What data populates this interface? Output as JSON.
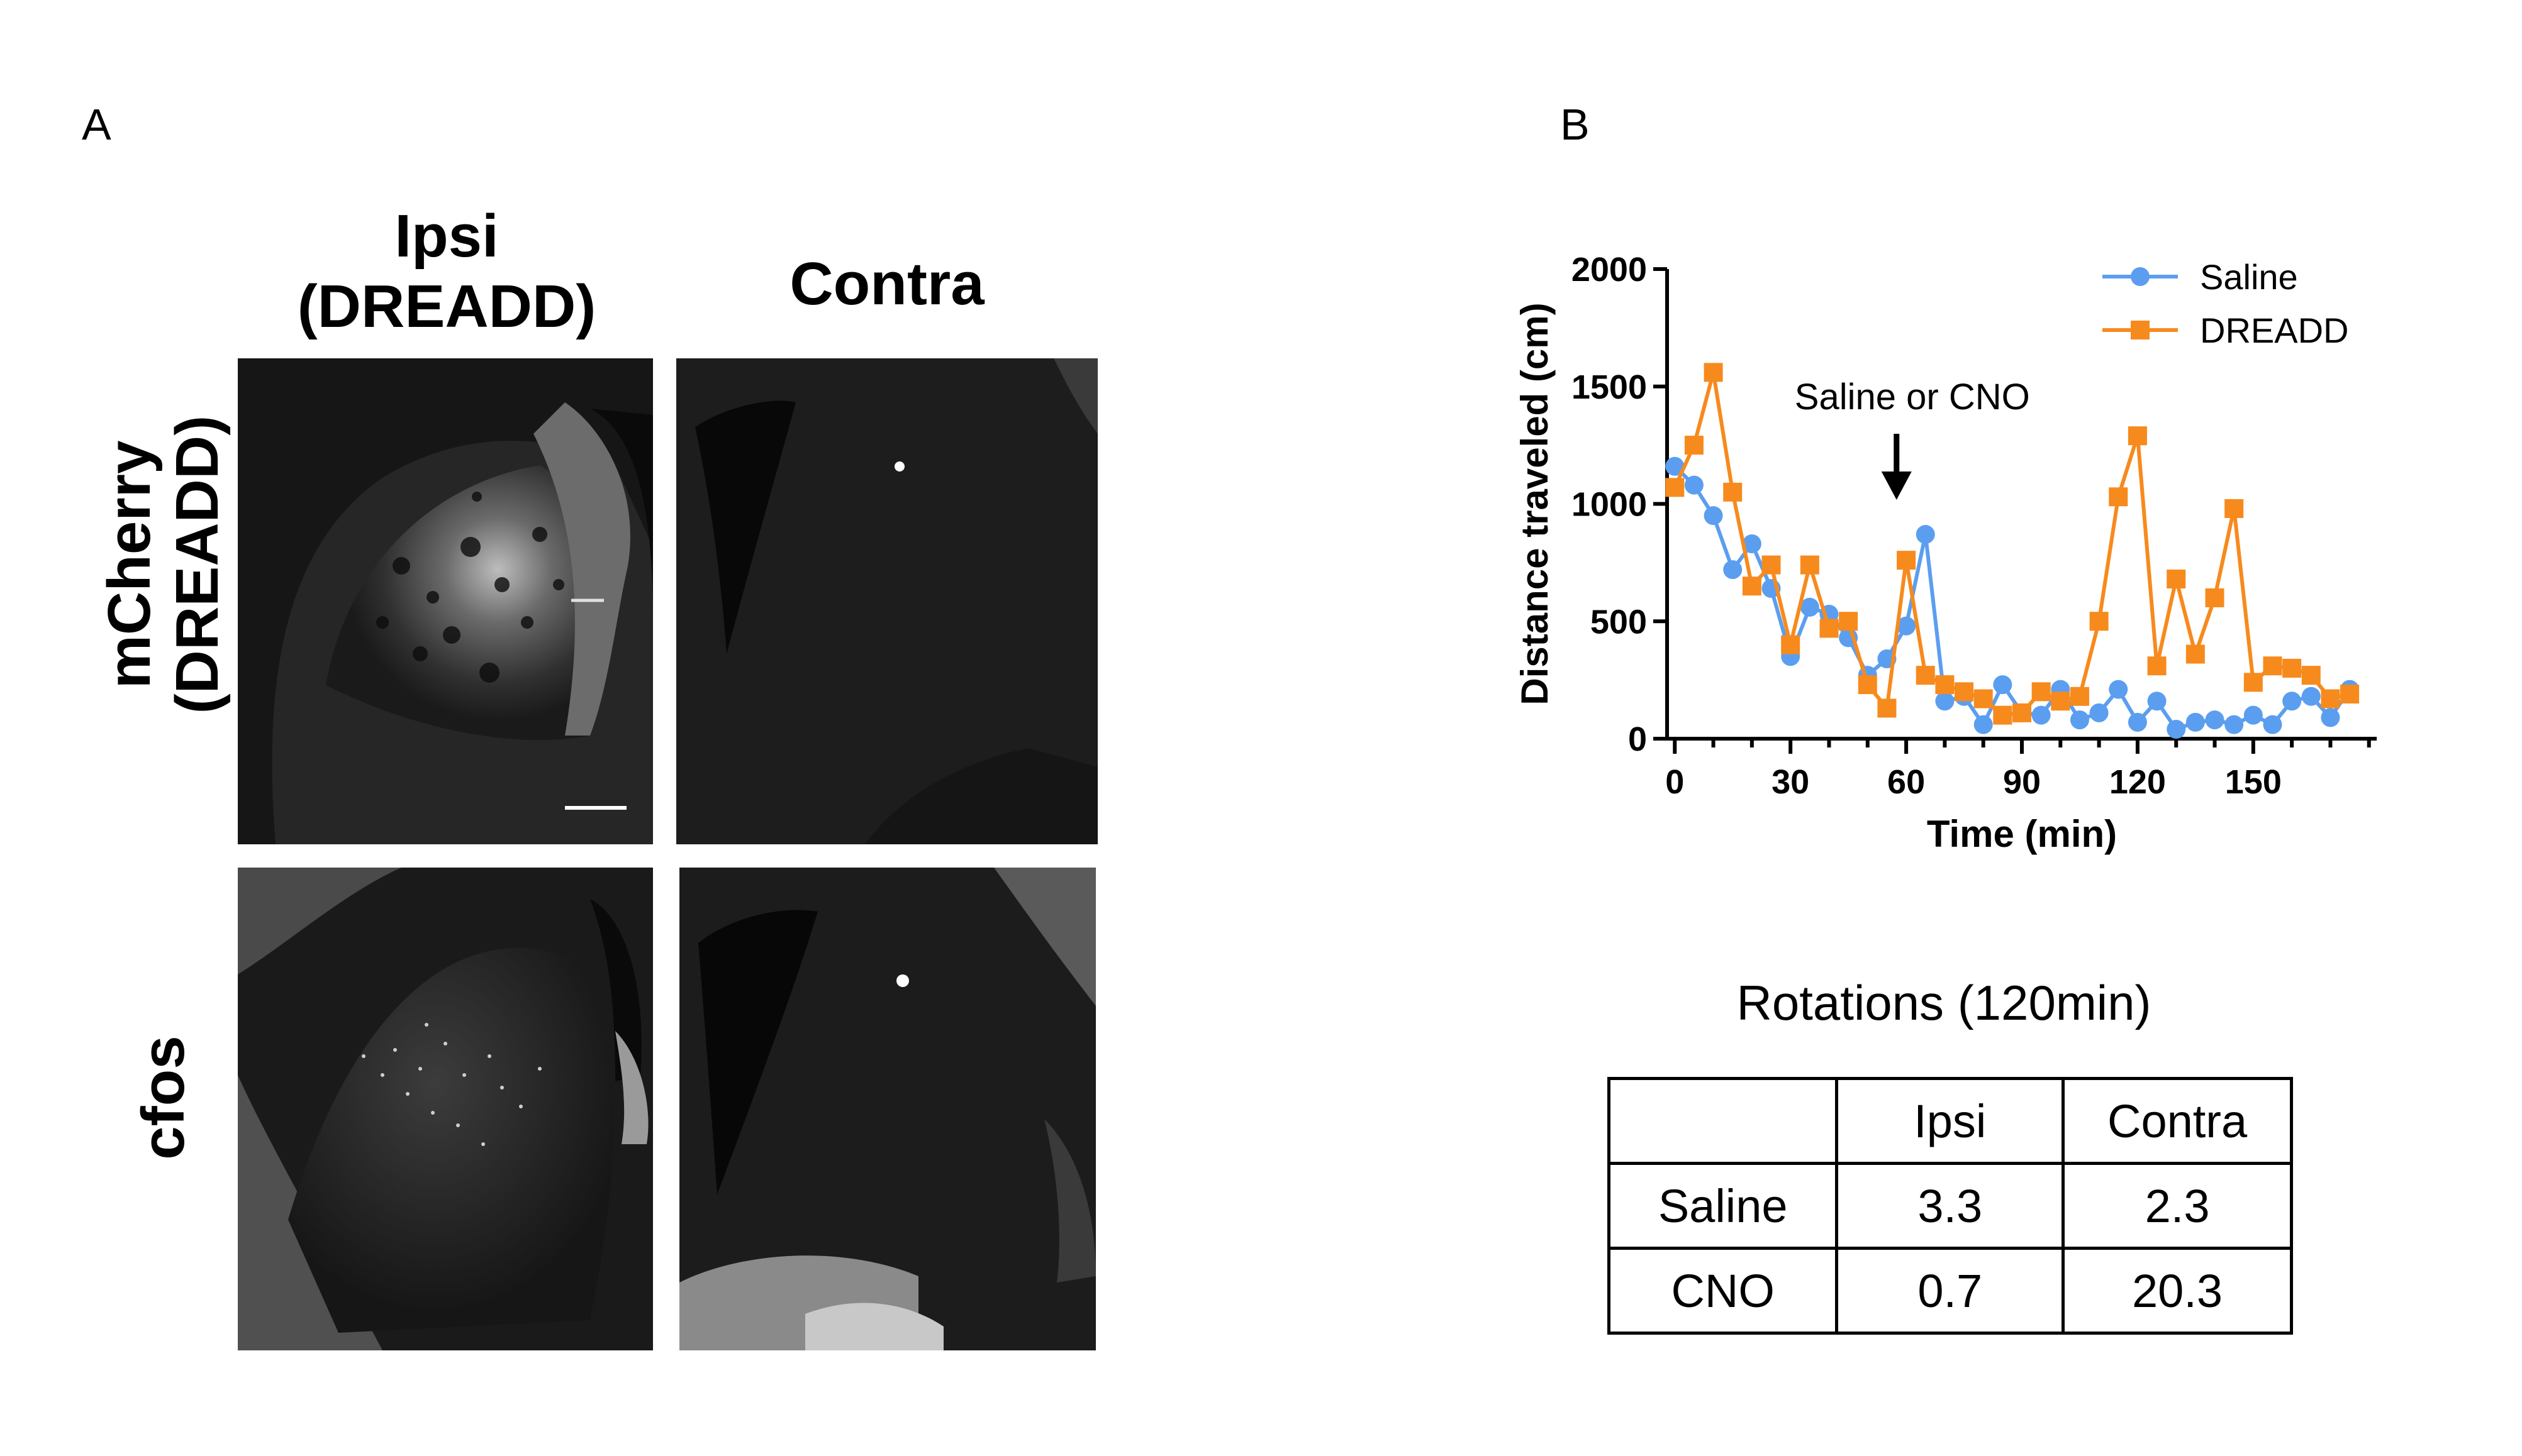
{
  "panel_a": {
    "label": "A",
    "column_headers": {
      "ipsi_line1": "Ipsi",
      "ipsi_line2": "(DREADD)",
      "contra": "Contra"
    },
    "row_headers": {
      "mcherry_line1": "mCherry",
      "mcherry_line2": "(DREADD)",
      "cfos": "cfos"
    },
    "micrographs": [
      {
        "name": "mcherry-ipsi-image",
        "row": "mCherry (DREADD)",
        "column": "Ipsi (DREADD)"
      },
      {
        "name": "mcherry-contra-image",
        "row": "mCherry (DREADD)",
        "column": "Contra"
      },
      {
        "name": "cfos-ipsi-image",
        "row": "cfos",
        "column": "Ipsi (DREADD)"
      },
      {
        "name": "cfos-contra-image",
        "row": "cfos",
        "column": "Contra"
      }
    ]
  },
  "panel_b": {
    "label": "B",
    "table": {
      "title": "Rotations (120min)",
      "headers": [
        "",
        "Ipsi",
        "Contra"
      ],
      "rows": [
        [
          "Saline",
          "3.3",
          "2.3"
        ],
        [
          "CNO",
          "0.7",
          "20.3"
        ]
      ]
    }
  },
  "colors": {
    "saline": "#5b9ef0",
    "dreadd": "#f78a1d"
  },
  "chart_data": {
    "type": "line",
    "title": "",
    "xlabel": "Time (min)",
    "ylabel": "Distance traveled (cm)",
    "xlim": [
      -2,
      182
    ],
    "ylim": [
      0,
      2000
    ],
    "xticks": [
      0,
      30,
      60,
      90,
      120,
      150
    ],
    "yticks": [
      0,
      500,
      1000,
      1500,
      2000
    ],
    "annotation": {
      "text": "Saline or CNO",
      "x": 57.5
    },
    "legend_position": "top-right",
    "series": [
      {
        "name": "Saline",
        "marker": "circle",
        "color": "#5b9ef0",
        "x": [
          0,
          5,
          10,
          15,
          20,
          25,
          30,
          35,
          40,
          45,
          50,
          55,
          60,
          65,
          70,
          75,
          80,
          85,
          90,
          95,
          100,
          105,
          110,
          115,
          120,
          125,
          130,
          135,
          140,
          145,
          150,
          155,
          160,
          165,
          170,
          175
        ],
        "y": [
          1160,
          1080,
          950,
          720,
          830,
          640,
          350,
          560,
          530,
          430,
          270,
          340,
          480,
          870,
          160,
          180,
          60,
          230,
          110,
          100,
          210,
          80,
          110,
          210,
          70,
          160,
          40,
          70,
          80,
          60,
          100,
          60,
          160,
          180,
          90,
          210
        ]
      },
      {
        "name": "DREADD",
        "marker": "square",
        "color": "#f78a1d",
        "x": [
          0,
          5,
          10,
          15,
          20,
          25,
          30,
          35,
          40,
          45,
          50,
          55,
          60,
          65,
          70,
          75,
          80,
          85,
          90,
          95,
          100,
          105,
          110,
          115,
          120,
          125,
          130,
          135,
          140,
          145,
          150,
          155,
          160,
          165,
          170,
          175
        ],
        "y": [
          1070,
          1250,
          1560,
          1050,
          650,
          740,
          400,
          740,
          470,
          500,
          230,
          130,
          760,
          270,
          230,
          200,
          170,
          100,
          110,
          200,
          160,
          180,
          500,
          1030,
          1290,
          310,
          680,
          360,
          600,
          980,
          240,
          310,
          300,
          270,
          170,
          190
        ]
      }
    ]
  }
}
